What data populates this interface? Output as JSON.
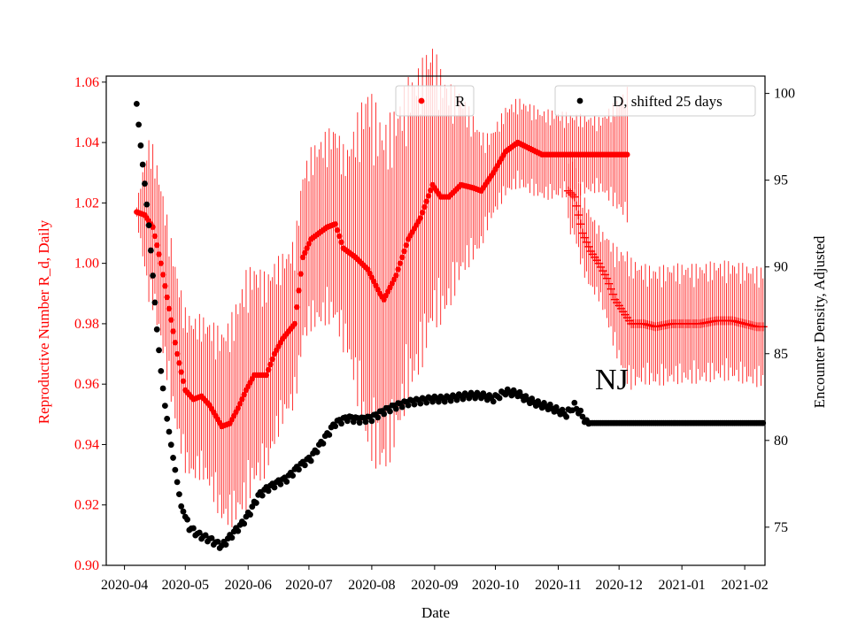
{
  "chart_data": {
    "type": "scatter",
    "annotation": "NJ",
    "xlabel": "Date",
    "ylabel_left": "Reproductive Number R_d, Daily",
    "ylabel_right": "Encounter Density, Adjusted",
    "ylim_left": [
      0.9,
      1.062
    ],
    "ylim_right": [
      72.8,
      101
    ],
    "x_tick_labels": [
      "2020-04",
      "2020-05",
      "2020-06",
      "2020-07",
      "2020-08",
      "2020-09",
      "2020-10",
      "2020-11",
      "2020-12",
      "2021-01",
      "2021-02"
    ],
    "y_left_ticks": [
      "0.90",
      "0.92",
      "0.94",
      "0.96",
      "0.98",
      "1.00",
      "1.02",
      "1.04",
      "1.06"
    ],
    "y_right_ticks": [
      "75",
      "80",
      "85",
      "90",
      "95",
      "100"
    ],
    "legend": {
      "r_label": "R",
      "d_label": "D, shifted 25 days"
    },
    "colors": {
      "r": "#ff0000",
      "d": "#000000",
      "left_axis": "#ff0000"
    },
    "x_range_days": [
      -9,
      316
    ],
    "series": [
      {
        "name": "R",
        "marker": "dot",
        "error_half_width_knots": [
          [
            6,
            0.002
          ],
          [
            12,
            0.022
          ],
          [
            40,
            0.022
          ],
          [
            60,
            0.032
          ],
          [
            80,
            0.022
          ],
          [
            110,
            0.028
          ],
          [
            120,
            0.05
          ],
          [
            150,
            0.04
          ],
          [
            180,
            0.012
          ],
          [
            210,
            0.012
          ],
          [
            235,
            0.01
          ],
          [
            248,
            0.018
          ],
          [
            256,
            0.016
          ],
          [
            300,
            0.016
          ],
          [
            315,
            0.016
          ]
        ],
        "knots": [
          [
            6,
            1.017
          ],
          [
            10,
            1.016
          ],
          [
            14,
            1.012
          ],
          [
            18,
            1.0
          ],
          [
            22,
            0.985
          ],
          [
            26,
            0.97
          ],
          [
            30,
            0.958
          ],
          [
            34,
            0.955
          ],
          [
            38,
            0.956
          ],
          [
            42,
            0.953
          ],
          [
            48,
            0.946
          ],
          [
            52,
            0.947
          ],
          [
            56,
            0.952
          ],
          [
            60,
            0.958
          ],
          [
            64,
            0.963
          ],
          [
            70,
            0.963
          ],
          [
            74,
            0.97
          ],
          [
            78,
            0.975
          ],
          [
            84,
            0.98
          ],
          [
            88,
            1.002
          ],
          [
            92,
            1.008
          ],
          [
            96,
            1.01
          ],
          [
            100,
            1.012
          ],
          [
            104,
            1.013
          ],
          [
            108,
            1.005
          ],
          [
            114,
            1.002
          ],
          [
            120,
            0.998
          ],
          [
            126,
            0.99
          ],
          [
            128,
            0.988
          ],
          [
            134,
            0.996
          ],
          [
            140,
            1.008
          ],
          [
            146,
            1.015
          ],
          [
            152,
            1.026
          ],
          [
            156,
            1.022
          ],
          [
            160,
            1.022
          ],
          [
            166,
            1.026
          ],
          [
            172,
            1.025
          ],
          [
            176,
            1.024
          ],
          [
            182,
            1.03
          ],
          [
            188,
            1.037
          ],
          [
            194,
            1.04
          ],
          [
            200,
            1.038
          ],
          [
            206,
            1.036
          ],
          [
            214,
            1.036
          ],
          [
            218,
            1.036
          ],
          [
            248,
            1.036
          ]
        ]
      },
      {
        "name": "R",
        "marker": "plus",
        "knots": [
          [
            219,
            1.024
          ],
          [
            222,
            1.022
          ],
          [
            226,
            1.01
          ],
          [
            230,
            1.004
          ],
          [
            234,
            1.0
          ],
          [
            238,
            0.995
          ],
          [
            242,
            0.988
          ],
          [
            246,
            0.984
          ],
          [
            250,
            0.98
          ],
          [
            256,
            0.98
          ],
          [
            262,
            0.979
          ],
          [
            270,
            0.98
          ],
          [
            276,
            0.98
          ],
          [
            284,
            0.98
          ],
          [
            292,
            0.981
          ],
          [
            300,
            0.981
          ],
          [
            306,
            0.98
          ],
          [
            312,
            0.979
          ],
          [
            315,
            0.979
          ]
        ]
      },
      {
        "name": "D, shifted 25 days",
        "marker": "dot",
        "knots": [
          [
            6,
            99.4
          ],
          [
            8,
            97.0
          ],
          [
            10,
            94.8
          ],
          [
            12,
            92.4
          ],
          [
            14,
            89.5
          ],
          [
            16,
            86.4
          ],
          [
            18,
            84.0
          ],
          [
            20,
            82.0
          ],
          [
            24,
            79.0
          ],
          [
            28,
            76.2
          ],
          [
            32,
            75.0
          ],
          [
            36,
            74.6
          ],
          [
            42,
            74.3
          ],
          [
            48,
            73.9
          ],
          [
            54,
            74.7
          ],
          [
            58,
            75.2
          ],
          [
            62,
            75.9
          ],
          [
            66,
            76.8
          ],
          [
            70,
            77.2
          ],
          [
            76,
            77.6
          ],
          [
            80,
            77.8
          ],
          [
            86,
            78.5
          ],
          [
            92,
            79.0
          ],
          [
            98,
            80.0
          ],
          [
            104,
            81.0
          ],
          [
            110,
            81.3
          ],
          [
            116,
            81.2
          ],
          [
            122,
            81.3
          ],
          [
            128,
            81.7
          ],
          [
            134,
            82.0
          ],
          [
            140,
            82.2
          ],
          [
            146,
            82.3
          ],
          [
            152,
            82.4
          ],
          [
            158,
            82.4
          ],
          [
            164,
            82.5
          ],
          [
            170,
            82.6
          ],
          [
            176,
            82.6
          ],
          [
            182,
            82.4
          ],
          [
            188,
            82.8
          ],
          [
            194,
            82.7
          ],
          [
            198,
            82.4
          ],
          [
            204,
            82.1
          ],
          [
            210,
            81.9
          ],
          [
            214,
            81.7
          ],
          [
            218,
            81.5
          ],
          [
            222,
            82.0
          ],
          [
            226,
            81.4
          ],
          [
            228,
            81.0
          ],
          [
            234,
            81.0
          ],
          [
            260,
            81.0
          ],
          [
            290,
            81.0
          ],
          [
            315,
            81.0
          ]
        ]
      }
    ]
  }
}
